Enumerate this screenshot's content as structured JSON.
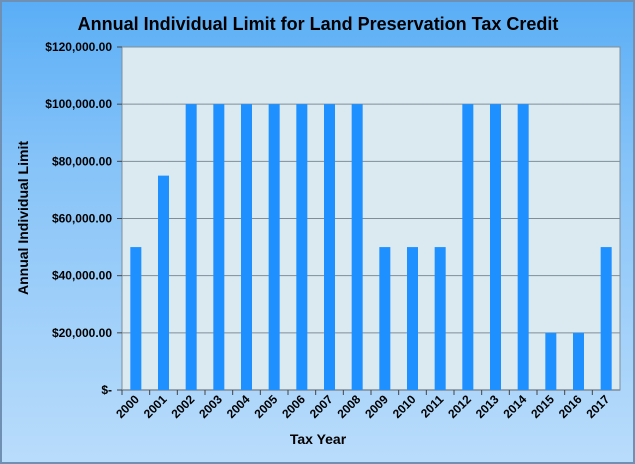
{
  "chart_data": {
    "type": "bar",
    "title": "Annual Individual Limit for Land Preservation Tax Credit",
    "xlabel": "Tax Year",
    "ylabel": "Annual Individual Limit",
    "categories": [
      "2000",
      "2001",
      "2002",
      "2003",
      "2004",
      "2005",
      "2006",
      "2007",
      "2008",
      "2009",
      "2010",
      "2011",
      "2012",
      "2013",
      "2014",
      "2015",
      "2016",
      "2017"
    ],
    "values": [
      50000,
      75000,
      100000,
      100000,
      100000,
      100000,
      100000,
      100000,
      100000,
      50000,
      50000,
      50000,
      100000,
      100000,
      100000,
      20000,
      20000,
      50000
    ],
    "ylim": [
      0,
      120000
    ],
    "yticks": [
      {
        "value": 0,
        "label": "$-"
      },
      {
        "value": 20000,
        "label": "$20,000.00"
      },
      {
        "value": 40000,
        "label": "$40,000.00"
      },
      {
        "value": 60000,
        "label": "$60,000.00"
      },
      {
        "value": 80000,
        "label": "$80,000.00"
      },
      {
        "value": 100000,
        "label": "$100,000.00"
      },
      {
        "value": 120000,
        "label": "$120,000.00"
      }
    ],
    "grid": true,
    "legend": "none",
    "colors": {
      "bar": "#1e90ff",
      "plot_background": "#dbe9f1",
      "grid": "#7f8e99"
    }
  }
}
